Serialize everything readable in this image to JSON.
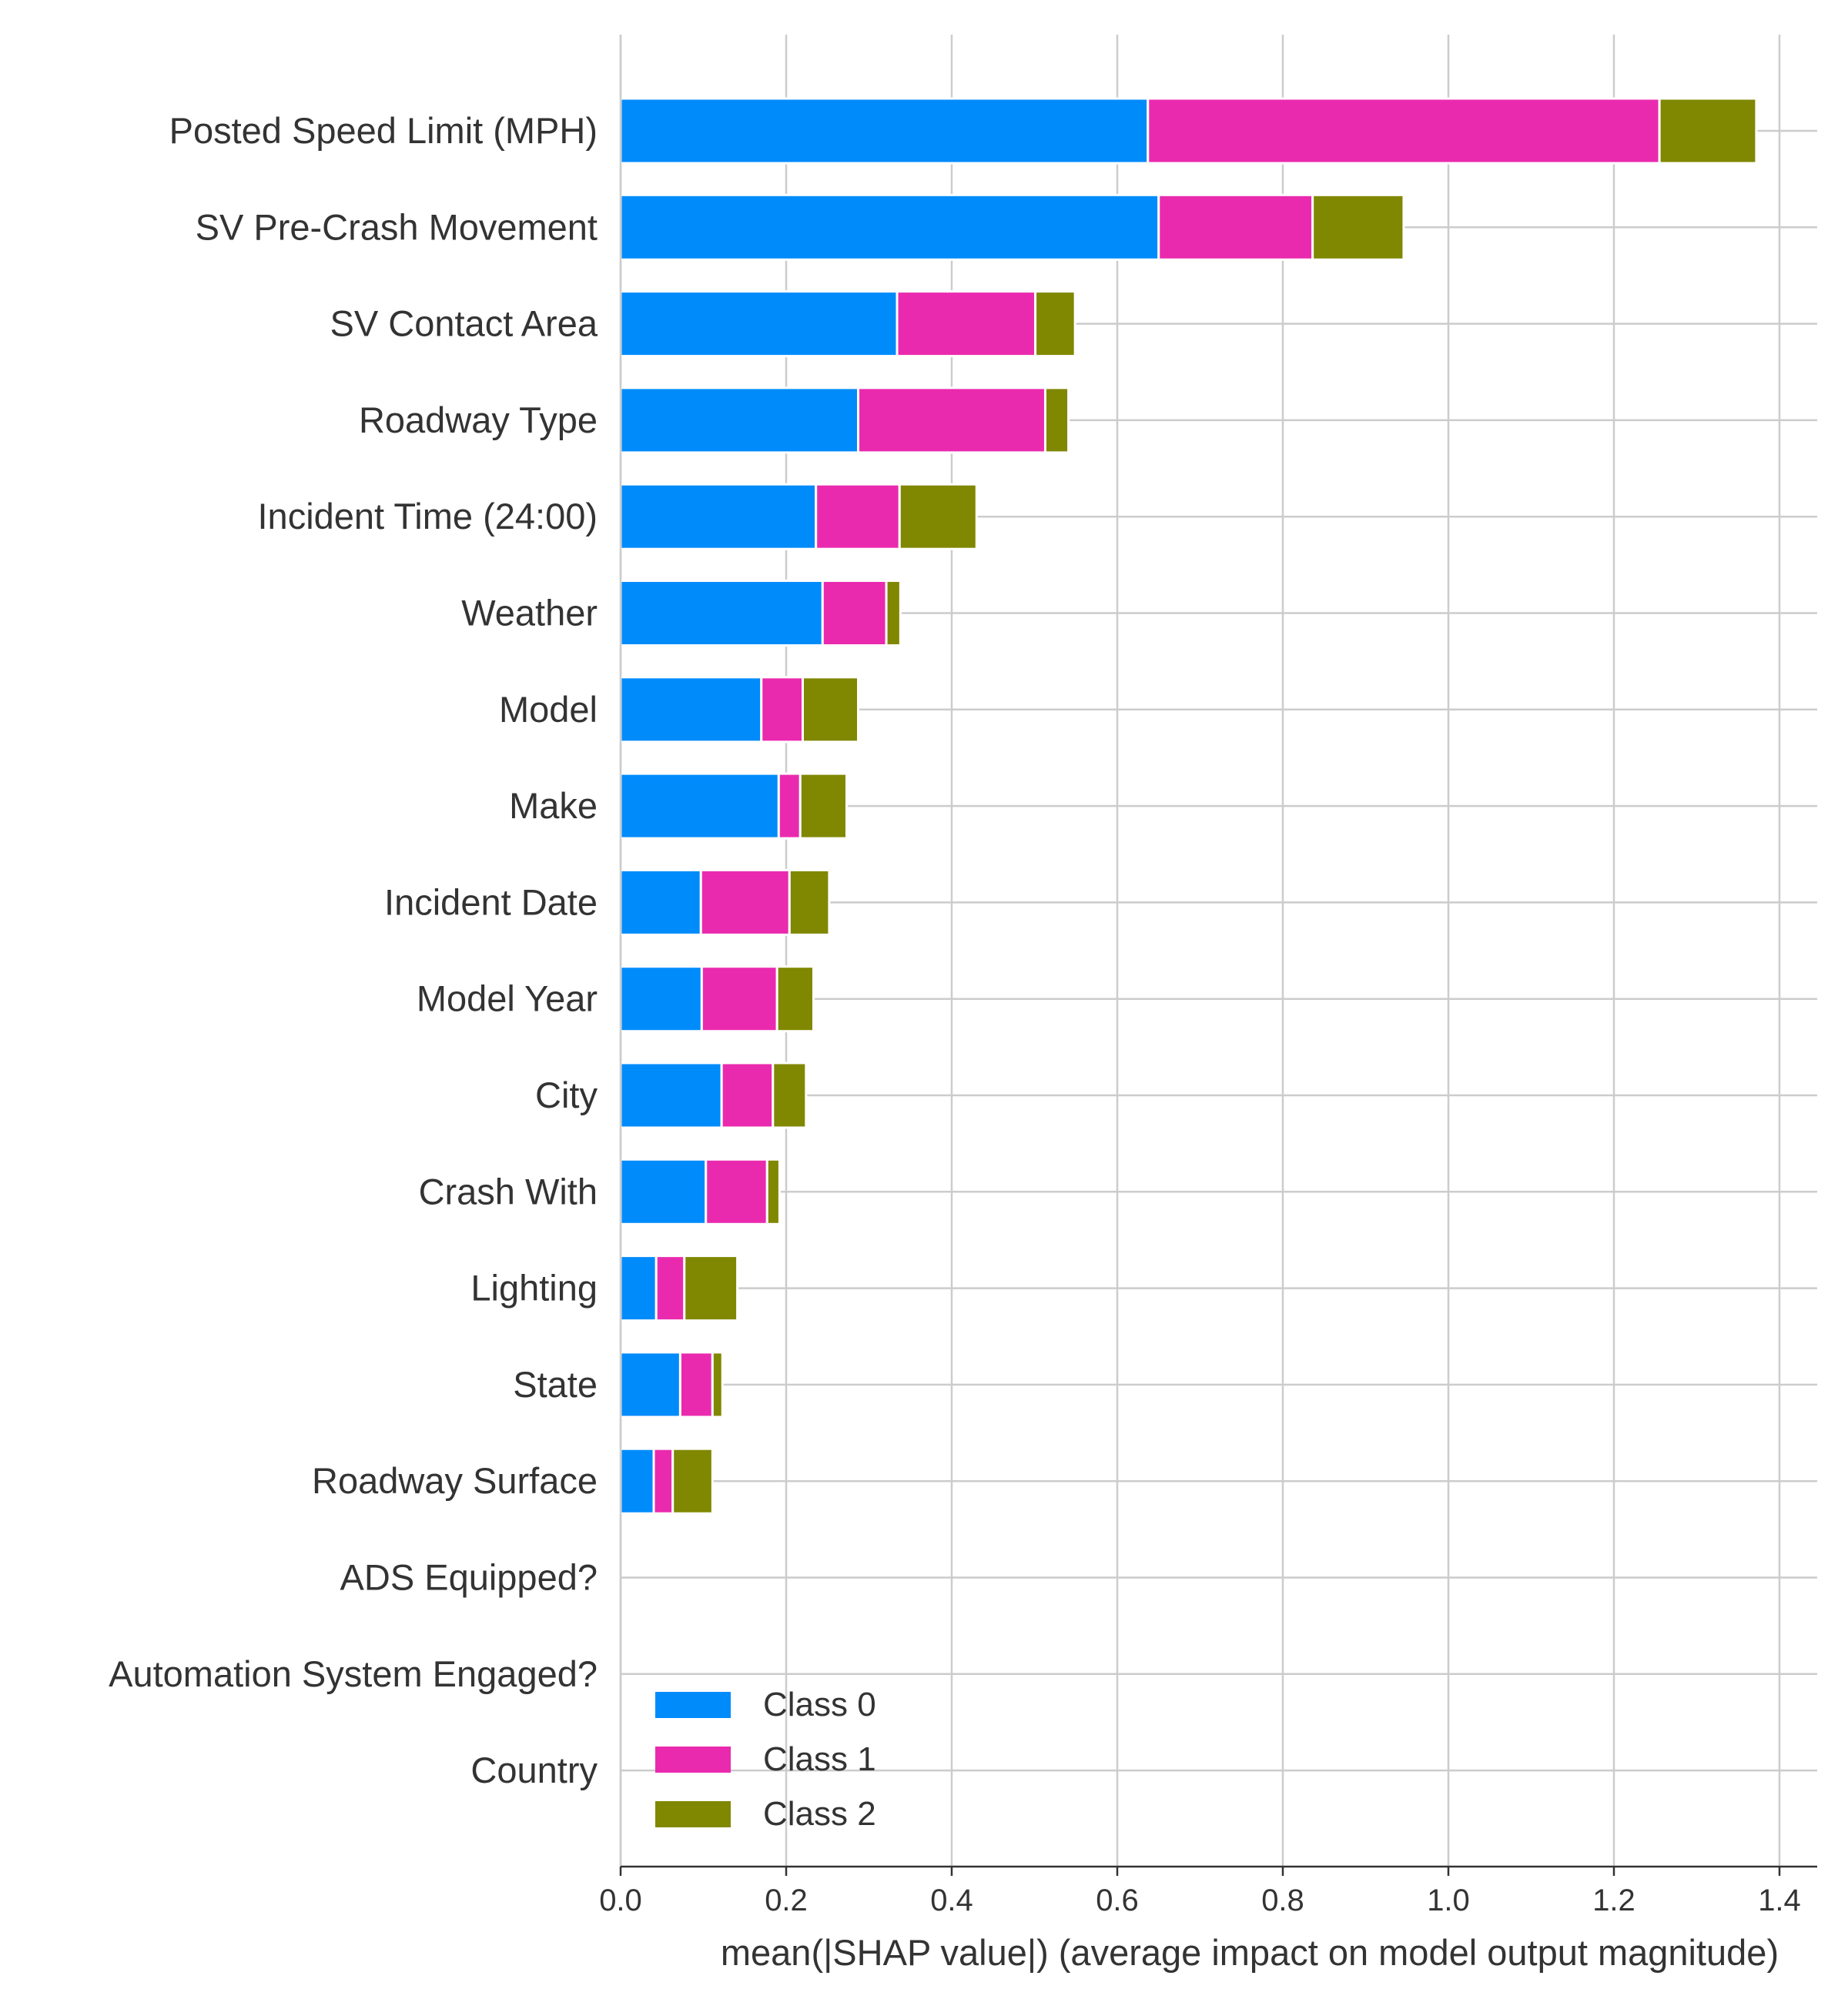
{
  "chart_data": {
    "type": "bar",
    "orientation": "horizontal",
    "stacked": true,
    "title": "",
    "xlabel": "mean(|SHAP value|) (average impact on model output magnitude)",
    "ylabel": "",
    "xlim": [
      0,
      1.44
    ],
    "xticks": [
      "0.0",
      "0.2",
      "0.4",
      "0.6",
      "0.8",
      "1.0",
      "1.2",
      "1.4"
    ],
    "grid": "on",
    "legend_position": "bottom-left",
    "categories": [
      "Posted Speed Limit (MPH)",
      "SV Pre-Crash Movement",
      "SV Contact Area",
      "Roadway Type",
      "Incident Time (24:00)",
      "Weather",
      "Model",
      "Make",
      "Incident Date",
      "Model Year",
      "City",
      "Crash With",
      "Lighting",
      "State",
      "Roadway Surface",
      "ADS Equipped?",
      "Automation System Engaged?",
      "Country"
    ],
    "series": [
      {
        "name": "Class 0",
        "color": "#008bfb",
        "values": [
          0.637,
          0.65,
          0.334,
          0.287,
          0.236,
          0.244,
          0.17,
          0.191,
          0.097,
          0.098,
          0.122,
          0.103,
          0.043,
          0.072,
          0.04,
          0.0,
          0.0,
          0.0
        ]
      },
      {
        "name": "Class 1",
        "color": "#ea2aae",
        "values": [
          0.618,
          0.186,
          0.167,
          0.226,
          0.101,
          0.077,
          0.05,
          0.026,
          0.107,
          0.091,
          0.062,
          0.074,
          0.034,
          0.039,
          0.023,
          0.0,
          0.0,
          0.0
        ]
      },
      {
        "name": "Class 2",
        "color": "#808700",
        "values": [
          0.117,
          0.11,
          0.048,
          0.028,
          0.093,
          0.017,
          0.067,
          0.056,
          0.048,
          0.044,
          0.04,
          0.015,
          0.064,
          0.012,
          0.048,
          0.0,
          0.0,
          0.0
        ]
      }
    ]
  }
}
